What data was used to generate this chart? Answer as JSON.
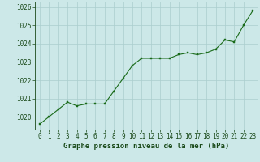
{
  "x": [
    0,
    1,
    2,
    3,
    4,
    5,
    6,
    7,
    8,
    9,
    10,
    11,
    12,
    13,
    14,
    15,
    16,
    17,
    18,
    19,
    20,
    21,
    22,
    23
  ],
  "y": [
    1019.6,
    1020.0,
    1020.4,
    1020.8,
    1020.6,
    1020.7,
    1020.7,
    1020.7,
    1021.4,
    1022.1,
    1022.8,
    1023.2,
    1023.2,
    1023.2,
    1023.2,
    1023.4,
    1023.5,
    1023.4,
    1023.5,
    1023.7,
    1024.2,
    1024.1,
    1025.0,
    1025.8
  ],
  "line_color": "#1a6b1a",
  "marker_color": "#1a6b1a",
  "bg_color": "#cce8e8",
  "grid_color": "#aacece",
  "text_color": "#1a4a1a",
  "xlabel": "Graphe pression niveau de la mer (hPa)",
  "ylim_min": 1019.3,
  "ylim_max": 1026.3,
  "yticks": [
    1020,
    1021,
    1022,
    1023,
    1024,
    1025,
    1026
  ],
  "xticks": [
    0,
    1,
    2,
    3,
    4,
    5,
    6,
    7,
    8,
    9,
    10,
    11,
    12,
    13,
    14,
    15,
    16,
    17,
    18,
    19,
    20,
    21,
    22,
    23
  ],
  "xlabel_fontsize": 6.5,
  "tick_fontsize": 5.5
}
